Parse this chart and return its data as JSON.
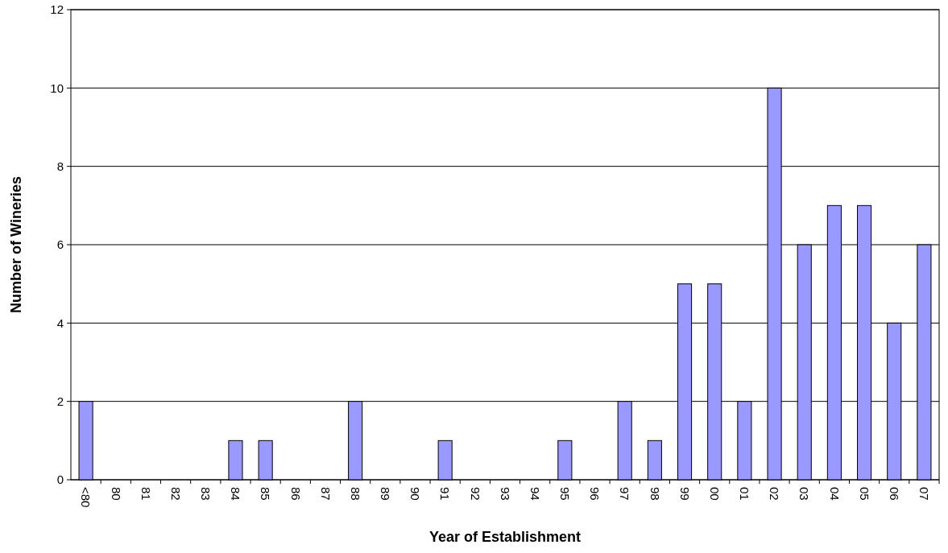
{
  "chart_data": {
    "type": "bar",
    "xlabel": "Year of Establishment",
    "ylabel": "Number of Wineries",
    "categories": [
      "<80",
      "80",
      "81",
      "82",
      "83",
      "84",
      "85",
      "86",
      "87",
      "88",
      "89",
      "90",
      "91",
      "92",
      "93",
      "94",
      "95",
      "96",
      "97",
      "98",
      "99",
      "00",
      "01",
      "02",
      "03",
      "04",
      "05",
      "06",
      "07"
    ],
    "values": [
      2,
      0,
      0,
      0,
      0,
      1,
      1,
      0,
      0,
      2,
      0,
      0,
      1,
      0,
      0,
      0,
      1,
      0,
      2,
      1,
      5,
      5,
      2,
      10,
      6,
      7,
      7,
      4,
      6
    ],
    "color": "#9999ff",
    "ylim": [
      0,
      12
    ],
    "yticks": [
      0,
      2,
      4,
      6,
      8,
      10,
      12
    ],
    "grid": "y"
  }
}
